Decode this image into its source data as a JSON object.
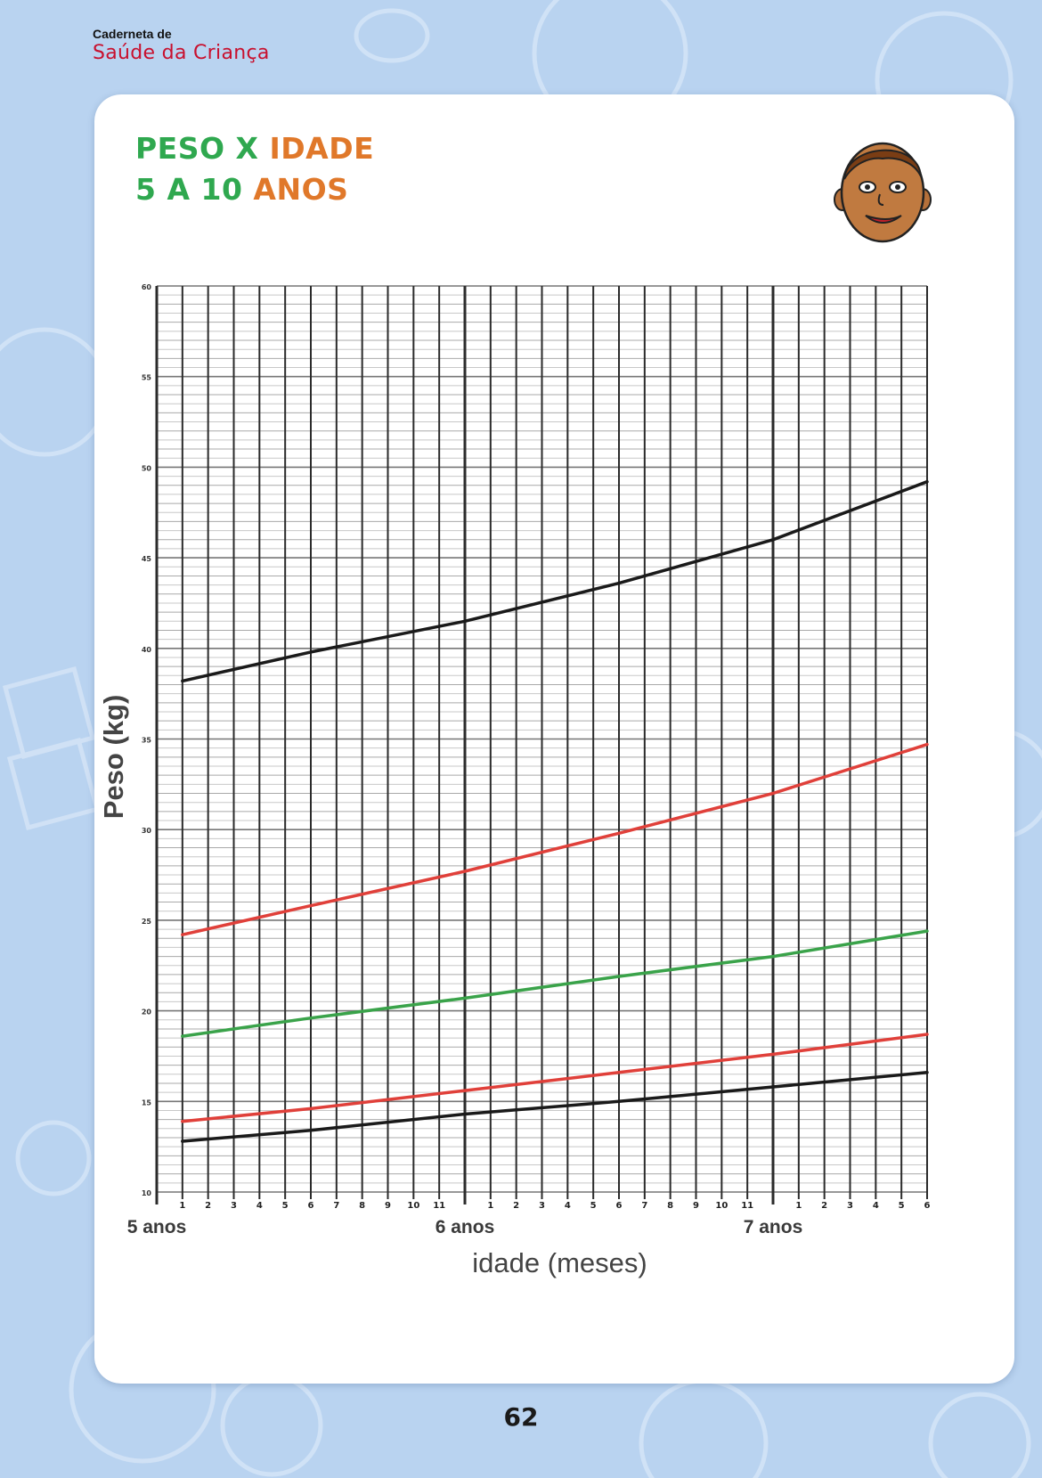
{
  "header": {
    "brand_top": "Caderneta de",
    "brand_bottom": "Saúde da Criança"
  },
  "title": {
    "line1_part1": "PESO X",
    "line1_part2": "IDADE",
    "line2_part1": "5 A 10",
    "line2_part2": "ANOS"
  },
  "icons": {
    "face": "child-face-icon"
  },
  "colors": {
    "background": "#b9d3f0",
    "title_green": "#2fa84f",
    "title_orange": "#e0782a",
    "brand_red": "#c8102e",
    "curve_black": "#1a1a1a",
    "curve_red": "#e0403a",
    "curve_green": "#3aa34a"
  },
  "chart_data": {
    "type": "line",
    "ylabel": "Peso (kg)",
    "xlabel": "idade (meses)",
    "ylim": [
      10,
      60
    ],
    "yticks": [
      10,
      15,
      20,
      25,
      30,
      35,
      40,
      45,
      50,
      55,
      60
    ],
    "xlim": [
      60,
      90
    ],
    "month_ticks": [
      {
        "x": 61,
        "label": "1"
      },
      {
        "x": 62,
        "label": "2"
      },
      {
        "x": 63,
        "label": "3"
      },
      {
        "x": 64,
        "label": "4"
      },
      {
        "x": 65,
        "label": "5"
      },
      {
        "x": 66,
        "label": "6"
      },
      {
        "x": 67,
        "label": "7"
      },
      {
        "x": 68,
        "label": "8"
      },
      {
        "x": 69,
        "label": "9"
      },
      {
        "x": 70,
        "label": "10"
      },
      {
        "x": 71,
        "label": "11"
      },
      {
        "x": 73,
        "label": "1"
      },
      {
        "x": 74,
        "label": "2"
      },
      {
        "x": 75,
        "label": "3"
      },
      {
        "x": 76,
        "label": "4"
      },
      {
        "x": 77,
        "label": "5"
      },
      {
        "x": 78,
        "label": "6"
      },
      {
        "x": 79,
        "label": "7"
      },
      {
        "x": 80,
        "label": "8"
      },
      {
        "x": 81,
        "label": "9"
      },
      {
        "x": 82,
        "label": "10"
      },
      {
        "x": 83,
        "label": "11"
      },
      {
        "x": 85,
        "label": "1"
      },
      {
        "x": 86,
        "label": "2"
      },
      {
        "x": 87,
        "label": "3"
      },
      {
        "x": 88,
        "label": "4"
      },
      {
        "x": 89,
        "label": "5"
      },
      {
        "x": 90,
        "label": "6"
      }
    ],
    "year_labels": [
      {
        "x": 60,
        "label": "5 anos"
      },
      {
        "x": 72,
        "label": "6 anos"
      },
      {
        "x": 84,
        "label": "7 anos"
      }
    ],
    "grid": true,
    "x": [
      61,
      66,
      72,
      78,
      84,
      90
    ],
    "series": [
      {
        "color": "#1a1a1a",
        "values": [
          38.2,
          39.8,
          41.5,
          43.6,
          46.0,
          49.2
        ]
      },
      {
        "color": "#e0403a",
        "values": [
          24.2,
          25.8,
          27.7,
          29.8,
          32.0,
          34.7
        ]
      },
      {
        "color": "#3aa34a",
        "values": [
          18.6,
          19.6,
          20.7,
          21.9,
          23.0,
          24.4
        ]
      },
      {
        "color": "#e0403a",
        "values": [
          13.9,
          14.6,
          15.6,
          16.6,
          17.6,
          18.7
        ]
      },
      {
        "color": "#1a1a1a",
        "values": [
          12.8,
          13.4,
          14.3,
          15.0,
          15.8,
          16.6
        ]
      }
    ]
  },
  "page_number": "62"
}
